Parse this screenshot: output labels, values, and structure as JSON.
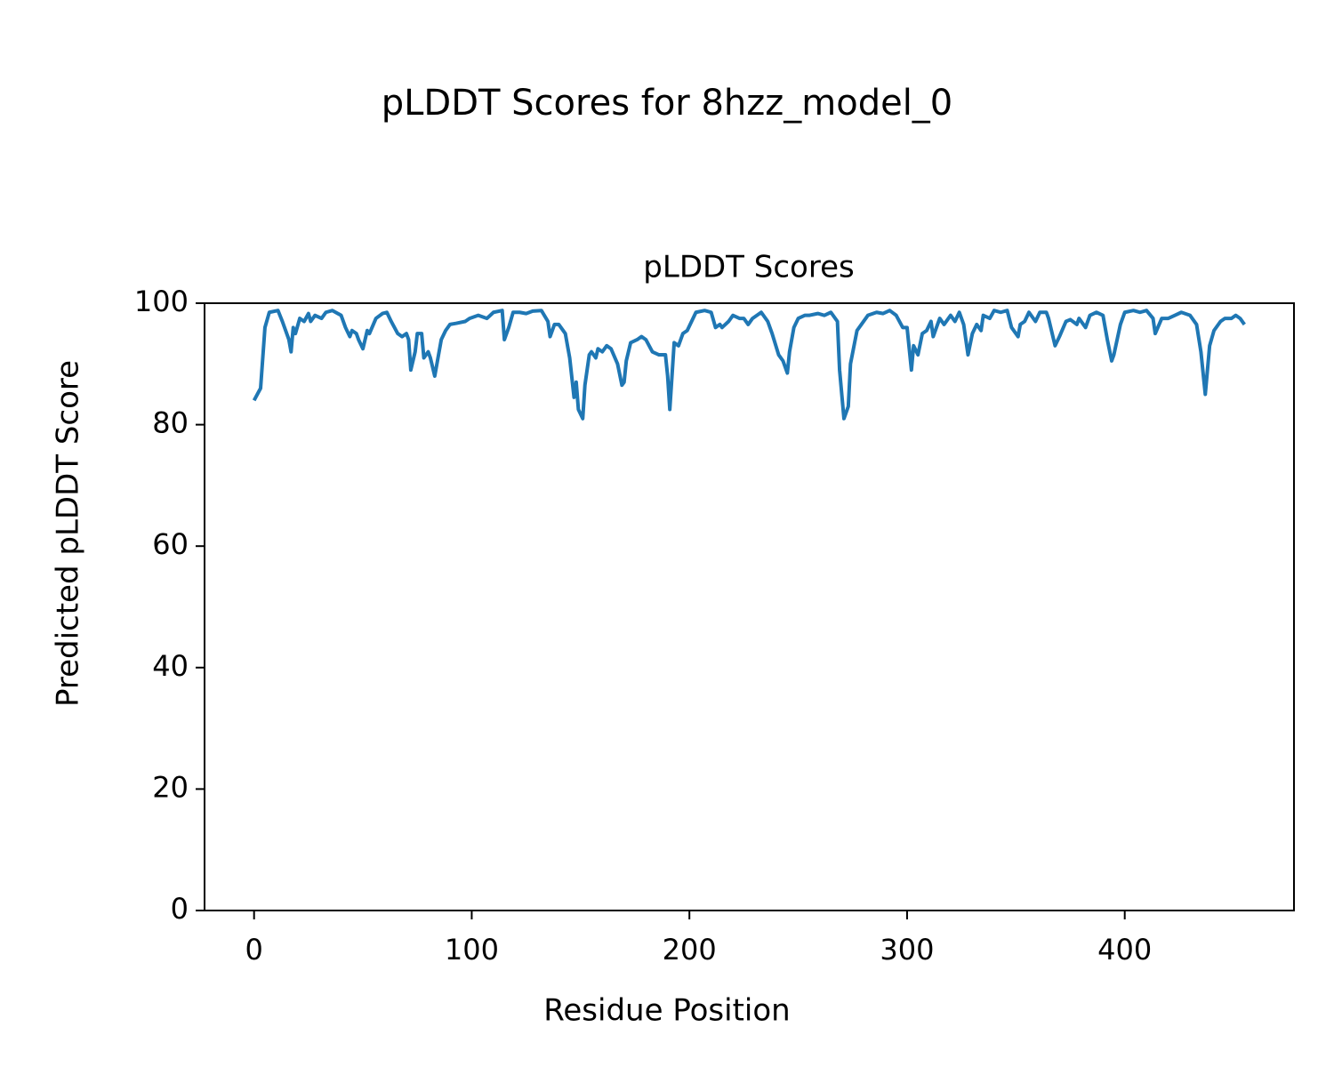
{
  "chart_data": {
    "type": "line",
    "suptitle": "pLDDT Scores for 8hzz_model_0",
    "title": "pLDDT Scores",
    "xlabel": "Residue Position",
    "ylabel": "Predicted pLDDT Score",
    "xlim": [
      -22.75,
      477.75
    ],
    "xticks": [
      0,
      100,
      200,
      300,
      400
    ],
    "ylim": [
      0,
      100
    ],
    "yticks": [
      0,
      20,
      40,
      60,
      80,
      100
    ],
    "x": [
      0,
      3,
      5,
      7,
      11,
      13,
      16,
      17,
      18,
      19,
      21,
      23,
      25,
      26,
      28,
      31,
      33,
      36,
      40,
      42,
      44,
      45,
      47,
      48,
      50,
      52,
      53,
      56,
      59,
      61,
      63,
      66,
      68,
      70,
      71,
      72,
      74,
      75,
      77,
      78,
      80,
      81,
      83,
      84,
      86,
      88,
      90,
      93,
      97,
      99,
      103,
      107,
      110,
      114,
      115,
      117,
      119,
      122,
      125,
      128,
      132,
      135,
      136,
      138,
      140,
      143,
      145,
      147,
      148,
      149,
      151,
      152,
      154,
      155,
      157,
      158,
      160,
      162,
      164,
      167,
      169,
      170,
      171,
      173,
      176,
      178,
      180,
      183,
      186,
      189,
      190,
      191,
      193,
      195,
      197,
      199,
      201,
      203,
      207,
      210,
      212,
      214,
      215,
      218,
      220,
      223,
      225,
      227,
      229,
      233,
      236,
      238,
      241,
      243,
      245,
      246,
      248,
      250,
      253,
      255,
      259,
      262,
      265,
      268,
      269,
      271,
      273,
      274,
      277,
      279,
      282,
      286,
      289,
      292,
      295,
      298,
      300,
      302,
      303,
      305,
      307,
      309,
      311,
      312,
      315,
      317,
      320,
      322,
      324,
      326,
      328,
      330,
      332,
      334,
      335,
      338,
      340,
      343,
      346,
      348,
      351,
      352,
      354,
      356,
      359,
      361,
      364,
      365,
      368,
      370,
      373,
      375,
      378,
      379,
      382,
      384,
      387,
      390,
      392,
      394,
      395,
      398,
      400,
      404,
      407,
      410,
      413,
      414,
      417,
      420,
      423,
      426,
      430,
      433,
      435,
      437,
      439,
      441,
      444,
      446,
      449,
      451,
      453,
      455
    ],
    "series": [
      {
        "name": "pLDDT",
        "color": "#1f77b4",
        "values": [
          84,
          86,
          96,
          98.5,
          98.8,
          97,
          94,
          92,
          96,
          95,
          97.5,
          97,
          98.3,
          97,
          98,
          97.5,
          98.5,
          98.8,
          98,
          96,
          94.5,
          95.5,
          95,
          94,
          92.5,
          95.5,
          95,
          97.5,
          98.3,
          98.5,
          97,
          95,
          94.5,
          95,
          94,
          89,
          92,
          95,
          95,
          91,
          92,
          91,
          88,
          90,
          94,
          95.5,
          96.5,
          96.7,
          97,
          97.5,
          98,
          97.5,
          98.5,
          98.8,
          94,
          96,
          98.5,
          98.5,
          98.3,
          98.7,
          98.8,
          97,
          94.5,
          96.5,
          96.5,
          95,
          91,
          84.5,
          87,
          82.5,
          81,
          86.5,
          91.5,
          92,
          91,
          92.5,
          92,
          93,
          92.5,
          90,
          86.5,
          87,
          90.5,
          93.5,
          94,
          94.5,
          94,
          92,
          91.5,
          91.5,
          88,
          82.5,
          93.5,
          93,
          95,
          95.5,
          97,
          98.5,
          98.8,
          98.5,
          96,
          96.5,
          96,
          97,
          98,
          97.5,
          97.5,
          96.5,
          97.5,
          98.5,
          97,
          95,
          91.5,
          90.5,
          88.5,
          92,
          96,
          97.5,
          98,
          98,
          98.3,
          98,
          98.5,
          97,
          89,
          81,
          83,
          90,
          95.5,
          96.5,
          98,
          98.5,
          98.3,
          98.8,
          98,
          96,
          96,
          89,
          93,
          91.5,
          95,
          95.5,
          97,
          94.5,
          97.5,
          96.5,
          98,
          97,
          98.5,
          96.5,
          91.5,
          95,
          96.5,
          95.5,
          98,
          97.5,
          98.8,
          98.5,
          98.8,
          96,
          94.5,
          96.5,
          97,
          98.5,
          97,
          98.5,
          98.5,
          97.5,
          93,
          94.5,
          97,
          97.3,
          96.5,
          97.5,
          96,
          98,
          98.5,
          98,
          94,
          90.5,
          91.5,
          96.5,
          98.5,
          98.8,
          98.5,
          98.8,
          97.5,
          95,
          97.5,
          97.5,
          98,
          98.5,
          98,
          96.5,
          92,
          85,
          93,
          95.5,
          97,
          97.5,
          97.5,
          98,
          97.5,
          96.5
        ]
      }
    ]
  }
}
